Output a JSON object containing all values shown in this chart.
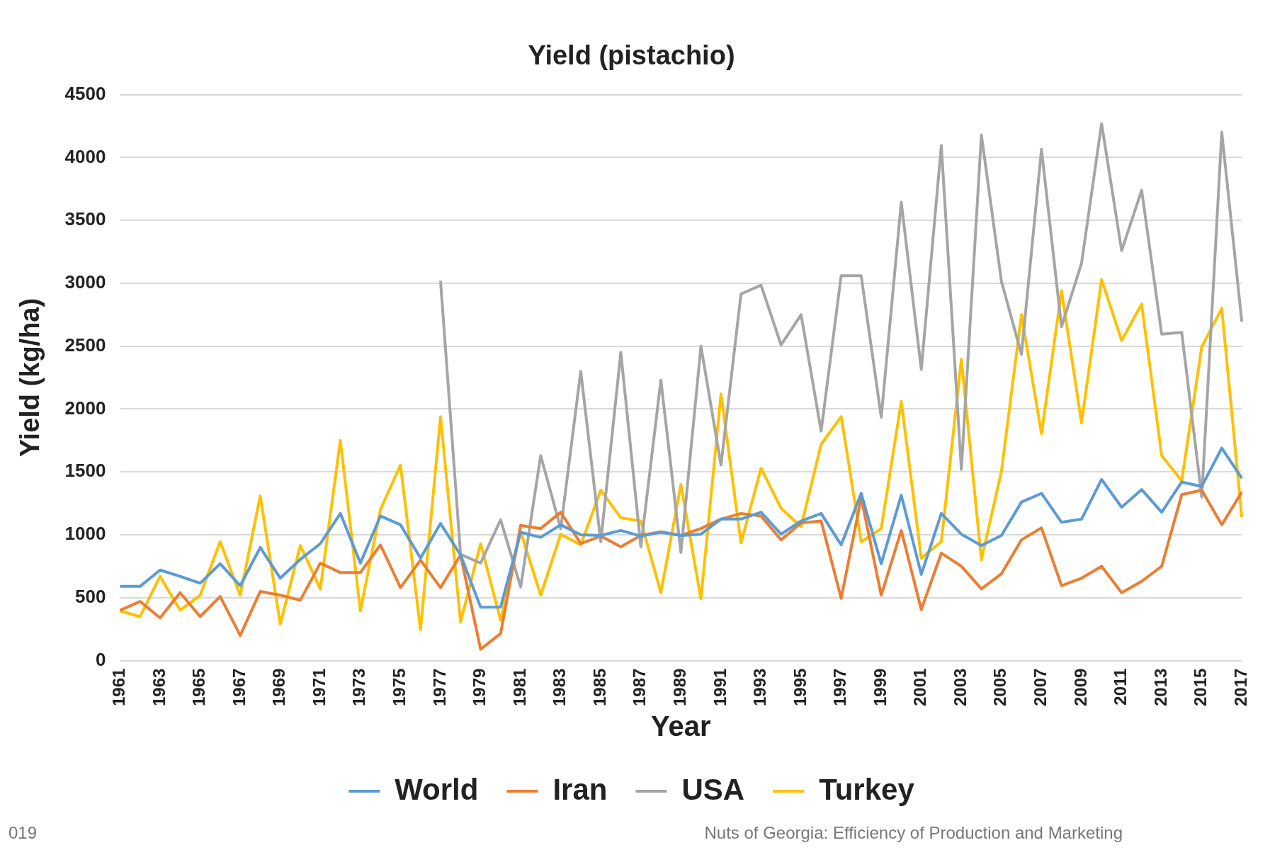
{
  "chart_data": {
    "type": "line",
    "title": "Yield (pistachio)",
    "xlabel": "Year",
    "ylabel": "Yield (kg/ha)",
    "categories": [
      "1961",
      null,
      "1963",
      null,
      "1965",
      null,
      "1967",
      null,
      "1969",
      null,
      "1971",
      null,
      "1973",
      null,
      "1975",
      null,
      "1977",
      null,
      "1979",
      null,
      "1981",
      null,
      "1983",
      null,
      "1985",
      null,
      "1987",
      null,
      "1989",
      null,
      "1991",
      null,
      "1993",
      null,
      "1995",
      null,
      "1997",
      null,
      "1999",
      null,
      "2001",
      null,
      "2003",
      null,
      "2005",
      null,
      "2007",
      null,
      "2009",
      null,
      "2011",
      null,
      "2013",
      null,
      "2015",
      null,
      "2017"
    ],
    "series": [
      {
        "name": "World",
        "color": "#5b9bd5",
        "values": [
          590,
          590,
          720,
          670,
          615,
          770,
          595,
          900,
          655,
          805,
          930,
          1170,
          775,
          1150,
          1080,
          815,
          1090,
          840,
          425,
          426,
          1020,
          980,
          1080,
          1000,
          995,
          1035,
          990,
          1020,
          995,
          1005,
          1125,
          1125,
          1180,
          1005,
          1110,
          1170,
          920,
          1330,
          770,
          1315,
          685,
          1170,
          1005,
          915,
          995,
          1260,
          1330,
          1100,
          1125,
          1440,
          1220,
          1360,
          1180,
          1420,
          1385,
          1690,
          1450
        ]
      },
      {
        "name": "Iran",
        "color": "#ed7d31",
        "values": [
          400,
          470,
          340,
          540,
          350,
          510,
          200,
          550,
          520,
          480,
          775,
          700,
          700,
          920,
          580,
          800,
          580,
          840,
          90,
          215,
          1075,
          1050,
          1180,
          930,
          990,
          905,
          995,
          1025,
          995,
          1050,
          1125,
          1170,
          1150,
          960,
          1095,
          1110,
          495,
          1295,
          520,
          1035,
          405,
          855,
          750,
          570,
          690,
          960,
          1055,
          595,
          655,
          750,
          540,
          630,
          750,
          1320,
          1355,
          1080,
          1340
        ]
      },
      {
        "name": "USA",
        "color": "#a5a5a5",
        "values": [
          null,
          null,
          null,
          null,
          null,
          null,
          null,
          null,
          null,
          null,
          null,
          null,
          null,
          null,
          null,
          null,
          3020,
          845,
          775,
          1120,
          585,
          1630,
          1050,
          2300,
          945,
          2450,
          905,
          2230,
          860,
          2500,
          1555,
          2915,
          2985,
          2510,
          2750,
          1825,
          3060,
          3060,
          1935,
          3645,
          2315,
          4095,
          1520,
          4180,
          3015,
          2435,
          4065,
          2655,
          3160,
          4270,
          3260,
          3740,
          2595,
          2610,
          1300,
          4200,
          2695
        ]
      },
      {
        "name": "Turkey",
        "color": "#ffc000",
        "values": [
          395,
          350,
          670,
          400,
          520,
          945,
          520,
          1310,
          290,
          915,
          570,
          1750,
          395,
          1200,
          1555,
          245,
          1940,
          305,
          930,
          320,
          1025,
          520,
          1005,
          920,
          1355,
          1135,
          1110,
          540,
          1400,
          490,
          2120,
          935,
          1530,
          1210,
          1065,
          1720,
          1940,
          945,
          1050,
          2060,
          815,
          945,
          2395,
          800,
          1505,
          2750,
          1805,
          2940,
          1890,
          3030,
          2545,
          2835,
          1630,
          1430,
          2495,
          2800,
          1140
        ]
      }
    ],
    "ylim": [
      0,
      4500
    ],
    "yticks": [
      0,
      500,
      1000,
      1500,
      2000,
      2500,
      3000,
      3500,
      4000,
      4500
    ],
    "grid": "y",
    "legend": "bottom",
    "marker": "none",
    "line_style": "solid",
    "annotations": [
      "019",
      "Nuts of Georgia: Efficiency of Production and Marketing"
    ]
  }
}
